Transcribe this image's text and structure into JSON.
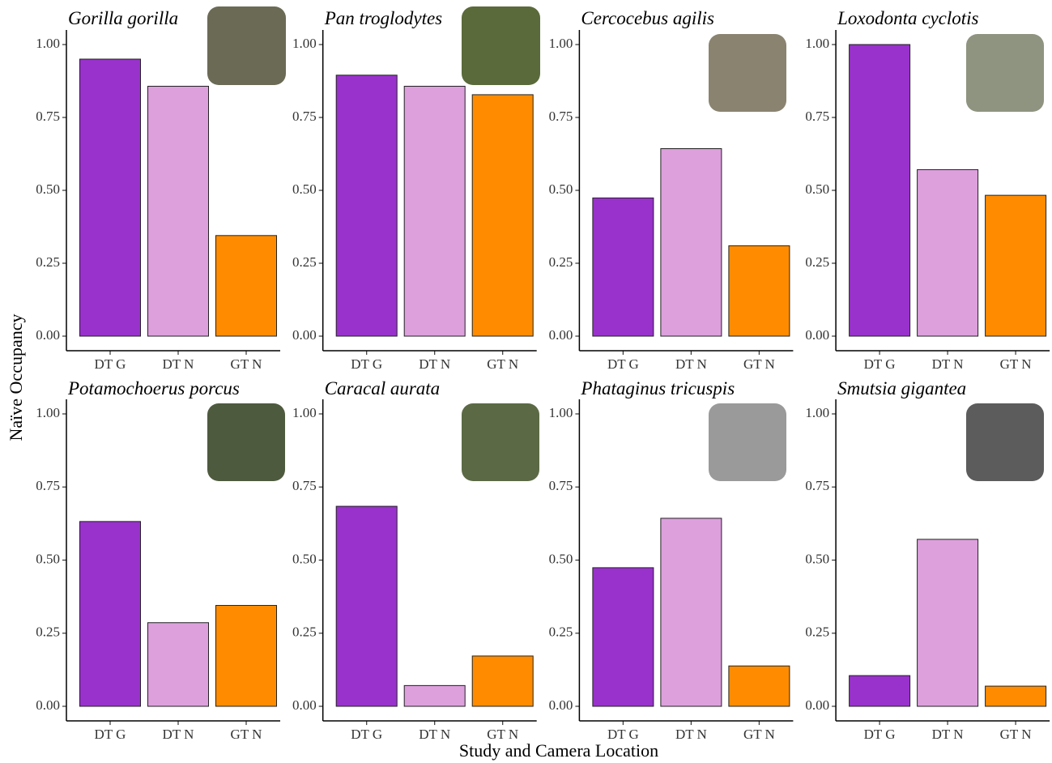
{
  "ylabel": "Naïve Occupancy",
  "xlabel": "Study and Camera Location",
  "chart_data": [
    {
      "type": "bar",
      "title": "Gorilla gorilla",
      "categories": [
        "DT G",
        "DT N",
        "GT N"
      ],
      "values": [
        0.95,
        0.857,
        0.345
      ],
      "colors": [
        "#9932cc",
        "#dda0dd",
        "#ff8c00"
      ],
      "ylim": [
        -0.05,
        1.05
      ],
      "yticks": [
        {
          "value": 0,
          "label": "0.00"
        },
        {
          "value": 0.25,
          "label": "0.25"
        },
        {
          "value": 0.5,
          "label": "0.50"
        },
        {
          "value": 0.75,
          "label": "0.75"
        },
        {
          "value": 1,
          "label": "1.00"
        }
      ]
    },
    {
      "type": "bar",
      "title": "Pan troglodytes",
      "categories": [
        "DT G",
        "DT N",
        "GT N"
      ],
      "values": [
        0.895,
        0.857,
        0.828
      ],
      "colors": [
        "#9932cc",
        "#dda0dd",
        "#ff8c00"
      ],
      "ylim": [
        -0.05,
        1.05
      ],
      "yticks": [
        {
          "value": 0,
          "label": "0.00"
        },
        {
          "value": 0.25,
          "label": "0.25"
        },
        {
          "value": 0.5,
          "label": "0.50"
        },
        {
          "value": 0.75,
          "label": "0.75"
        },
        {
          "value": 1,
          "label": "1.00"
        }
      ]
    },
    {
      "type": "bar",
      "title": "Cercocebus agilis",
      "categories": [
        "DT G",
        "DT N",
        "GT N"
      ],
      "values": [
        0.474,
        0.643,
        0.31
      ],
      "colors": [
        "#9932cc",
        "#dda0dd",
        "#ff8c00"
      ],
      "ylim": [
        -0.05,
        1.05
      ],
      "yticks": [
        {
          "value": 0,
          "label": "0.00"
        },
        {
          "value": 0.25,
          "label": "0.25"
        },
        {
          "value": 0.5,
          "label": "0.50"
        },
        {
          "value": 0.75,
          "label": "0.75"
        },
        {
          "value": 1,
          "label": "1.00"
        }
      ]
    },
    {
      "type": "bar",
      "title": "Loxodonta cyclotis",
      "categories": [
        "DT G",
        "DT N",
        "GT N"
      ],
      "values": [
        1.0,
        0.571,
        0.483
      ],
      "colors": [
        "#9932cc",
        "#dda0dd",
        "#ff8c00"
      ],
      "ylim": [
        -0.05,
        1.05
      ],
      "yticks": [
        {
          "value": 0,
          "label": "0.00"
        },
        {
          "value": 0.25,
          "label": "0.25"
        },
        {
          "value": 0.5,
          "label": "0.50"
        },
        {
          "value": 0.75,
          "label": "0.75"
        },
        {
          "value": 1,
          "label": "1.00"
        }
      ]
    },
    {
      "type": "bar",
      "title": "Potamochoerus porcus",
      "categories": [
        "DT G",
        "DT N",
        "GT N"
      ],
      "values": [
        0.632,
        0.286,
        0.345
      ],
      "colors": [
        "#9932cc",
        "#dda0dd",
        "#ff8c00"
      ],
      "ylim": [
        -0.05,
        1.05
      ],
      "yticks": [
        {
          "value": 0,
          "label": "0.00"
        },
        {
          "value": 0.25,
          "label": "0.25"
        },
        {
          "value": 0.5,
          "label": "0.50"
        },
        {
          "value": 0.75,
          "label": "0.75"
        },
        {
          "value": 1,
          "label": "1.00"
        }
      ]
    },
    {
      "type": "bar",
      "title": "Caracal aurata",
      "categories": [
        "DT G",
        "DT N",
        "GT N"
      ],
      "values": [
        0.684,
        0.071,
        0.172
      ],
      "colors": [
        "#9932cc",
        "#dda0dd",
        "#ff8c00"
      ],
      "ylim": [
        -0.05,
        1.05
      ],
      "yticks": [
        {
          "value": 0,
          "label": "0.00"
        },
        {
          "value": 0.25,
          "label": "0.25"
        },
        {
          "value": 0.5,
          "label": "0.50"
        },
        {
          "value": 0.75,
          "label": "0.75"
        },
        {
          "value": 1,
          "label": "1.00"
        }
      ]
    },
    {
      "type": "bar",
      "title": "Phataginus tricuspis",
      "categories": [
        "DT G",
        "DT N",
        "GT N"
      ],
      "values": [
        0.474,
        0.643,
        0.138
      ],
      "colors": [
        "#9932cc",
        "#dda0dd",
        "#ff8c00"
      ],
      "ylim": [
        -0.05,
        1.05
      ],
      "yticks": [
        {
          "value": 0,
          "label": "0.00"
        },
        {
          "value": 0.25,
          "label": "0.25"
        },
        {
          "value": 0.5,
          "label": "0.50"
        },
        {
          "value": 0.75,
          "label": "0.75"
        },
        {
          "value": 1,
          "label": "1.00"
        }
      ]
    },
    {
      "type": "bar",
      "title": "Smutsia gigantea",
      "categories": [
        "DT G",
        "DT N",
        "GT N"
      ],
      "values": [
        0.105,
        0.571,
        0.069
      ],
      "colors": [
        "#9932cc",
        "#dda0dd",
        "#ff8c00"
      ],
      "ylim": [
        -0.05,
        1.05
      ],
      "yticks": [
        {
          "value": 0,
          "label": "0.00"
        },
        {
          "value": 0.25,
          "label": "0.25"
        },
        {
          "value": 0.5,
          "label": "0.50"
        },
        {
          "value": 0.75,
          "label": "0.75"
        },
        {
          "value": 1,
          "label": "1.00"
        }
      ]
    }
  ]
}
